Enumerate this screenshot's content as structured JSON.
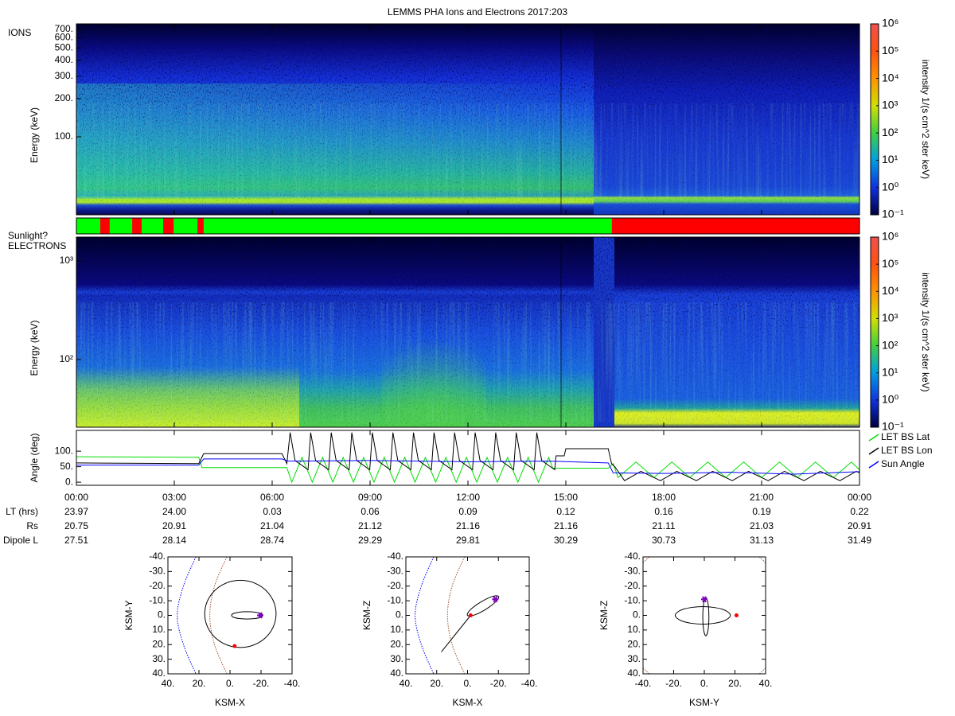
{
  "title": "LEMMS PHA Ions and Electrons  2017:203",
  "chart_data": [
    {
      "type": "spectrogram",
      "label": "IONS",
      "ylabel": "Energy (keV)",
      "ylog": true,
      "xlim": [
        0,
        24
      ],
      "ylim": [
        24.4,
        772
      ],
      "yticks": [
        {
          "value": 100,
          "label": "100."
        },
        {
          "value": 200,
          "label": "200."
        },
        {
          "value": 300,
          "label": "300."
        },
        {
          "value": 400,
          "label": "400."
        },
        {
          "value": 500,
          "label": "500."
        },
        {
          "value": 600,
          "label": "600."
        },
        {
          "value": 700,
          "label": "700."
        }
      ],
      "colorbar": {
        "label": "intensity 1/(s cm^2 ster keV)",
        "log": true,
        "clim": [
          0.1,
          1000000
        ],
        "ticks": [
          {
            "value": 0.1,
            "label": "10⁻¹"
          },
          {
            "value": 1,
            "label": "10⁰"
          },
          {
            "value": 10,
            "label": "10¹"
          },
          {
            "value": 100,
            "label": "10²"
          },
          {
            "value": 1000,
            "label": "10³"
          },
          {
            "value": 10000,
            "label": "10⁴"
          },
          {
            "value": 100000,
            "label": "10⁵"
          },
          {
            "value": 1000000,
            "label": "10⁶"
          }
        ]
      }
    },
    {
      "type": "timeline",
      "label": "Sunlight?",
      "xlim": [
        0,
        24
      ],
      "color": "#00ff00",
      "interval_color": "#ff0000",
      "intervals": [
        [
          0.73,
          1.02
        ],
        [
          1.71,
          2.0
        ],
        [
          2.66,
          2.98
        ],
        [
          3.71,
          3.9
        ],
        [
          16.41,
          24
        ]
      ]
    },
    {
      "type": "spectrogram",
      "label": "ELECTRONS",
      "ylabel": "Energy (keV)",
      "ylog": true,
      "xlim": [
        0,
        24
      ],
      "ylim": [
        20.6,
        1746
      ],
      "yticks": [
        {
          "value": 100,
          "label": "10²"
        },
        {
          "value": 1000,
          "label": "10³"
        }
      ],
      "colorbar": {
        "label": "intensity 1/(s cm^2 ster keV)",
        "log": true,
        "clim": [
          0.1,
          1000000
        ],
        "ticks": [
          {
            "value": 0.1,
            "label": "10⁻¹"
          },
          {
            "value": 1,
            "label": "10⁰"
          },
          {
            "value": 10,
            "label": "10¹"
          },
          {
            "value": 100,
            "label": "10²"
          },
          {
            "value": 1000,
            "label": "10³"
          },
          {
            "value": 10000,
            "label": "10⁴"
          },
          {
            "value": 100000,
            "label": "10⁵"
          },
          {
            "value": 1000000,
            "label": "10⁶"
          }
        ]
      }
    },
    {
      "type": "line",
      "ylabel": "Angle (deg)",
      "xlim": [
        0,
        24
      ],
      "ylim": [
        -10,
        167
      ],
      "legend": "right",
      "yticks": [
        {
          "value": 0,
          "label": "0."
        },
        {
          "value": 50,
          "label": "50."
        },
        {
          "value": 100,
          "label": "100."
        }
      ],
      "xticks": [
        {
          "value": 0,
          "label": "00:00"
        },
        {
          "value": 3,
          "label": "03:00"
        },
        {
          "value": 6,
          "label": "06:00"
        },
        {
          "value": 9,
          "label": "09:00"
        },
        {
          "value": 12,
          "label": "12:00"
        },
        {
          "value": 15,
          "label": "15:00"
        },
        {
          "value": 18,
          "label": "18:00"
        },
        {
          "value": 21,
          "label": "21:00"
        },
        {
          "value": 24,
          "label": "00:00"
        }
      ],
      "series": [
        {
          "name": "LET BS Lat",
          "color": "#00dd00",
          "x": [
            0,
            3.75,
            3.85,
            6.45,
            6.6,
            6.915,
            7.23,
            7.545,
            7.86,
            8.175,
            8.49,
            8.805,
            9.12,
            9.435,
            9.75,
            10.065,
            10.38,
            10.695,
            11.01,
            11.325,
            11.64,
            11.955,
            12.27,
            12.585,
            12.9,
            13.215,
            13.53,
            13.845,
            14.16,
            14.475,
            14.6,
            16.3,
            16.45,
            16.6,
            17.15,
            17.7,
            18.25,
            18.8,
            19.35,
            19.9,
            20.45,
            21.0,
            21.55,
            22.1,
            22.65,
            23.2,
            23.75,
            24
          ],
          "values": [
            82,
            80,
            47,
            47,
            0,
            80,
            0,
            80,
            0,
            80,
            0,
            80,
            0,
            80,
            0,
            80,
            0,
            80,
            0,
            80,
            0,
            80,
            0,
            80,
            0,
            80,
            0,
            80,
            0,
            80,
            45,
            45,
            60,
            15,
            65,
            15,
            65,
            15,
            65,
            15,
            65,
            15,
            65,
            15,
            65,
            15,
            65,
            40
          ]
        },
        {
          "name": "LET BS Lon",
          "color": "#000000",
          "x": [
            0,
            3.75,
            3.9,
            6.3,
            6.45,
            6.55,
            6.7,
            7.1,
            7.18,
            7.33,
            7.73,
            7.81,
            7.96,
            8.36,
            8.44,
            8.59,
            8.99,
            9.07,
            9.22,
            9.62,
            9.7,
            9.85,
            10.25,
            10.33,
            10.48,
            10.88,
            10.96,
            11.11,
            11.51,
            11.59,
            11.74,
            12.14,
            12.22,
            12.37,
            12.77,
            12.85,
            13.0,
            13.4,
            13.48,
            13.63,
            14.03,
            14.11,
            14.26,
            14.66,
            14.7,
            14.95,
            15.0,
            16.3,
            16.4,
            16.5,
            16.8,
            17.3,
            17.9,
            18.4,
            19.0,
            19.5,
            20.1,
            20.6,
            21.2,
            21.7,
            22.3,
            22.8,
            23.4,
            23.9,
            24
          ],
          "values": [
            62,
            60,
            92,
            92,
            60,
            160,
            70,
            40,
            160,
            70,
            40,
            160,
            70,
            40,
            160,
            70,
            40,
            160,
            70,
            40,
            160,
            70,
            40,
            160,
            70,
            40,
            160,
            70,
            40,
            160,
            70,
            40,
            160,
            70,
            40,
            160,
            70,
            40,
            160,
            70,
            40,
            160,
            70,
            40,
            85,
            85,
            108,
            108,
            60,
            50,
            5,
            35,
            5,
            35,
            5,
            35,
            5,
            35,
            5,
            35,
            5,
            35,
            5,
            35,
            30
          ]
        },
        {
          "name": "Sun Angle",
          "color": "#0000ff",
          "x": [
            0,
            3.75,
            3.9,
            6.3,
            6.5,
            9,
            12,
            14.5,
            16.3,
            16.45,
            18,
            20,
            22,
            24
          ],
          "values": [
            55,
            55,
            75,
            75,
            68,
            70,
            66,
            68,
            62,
            30,
            28,
            32,
            26,
            34
          ]
        }
      ]
    },
    {
      "type": "orbit",
      "xlabel": "KSM-X",
      "ylabel": "KSM-Y",
      "xlim": [
        40,
        -40
      ],
      "ylim": [
        40,
        -40
      ],
      "xticks": [
        {
          "value": 40,
          "label": "40."
        },
        {
          "value": 20,
          "label": "20."
        },
        {
          "value": 0,
          "label": "0."
        },
        {
          "value": -20,
          "label": "-20."
        },
        {
          "value": -40,
          "label": "-40."
        }
      ],
      "yticks": [
        {
          "value": -40,
          "label": "-40."
        },
        {
          "value": -30,
          "label": "-30."
        },
        {
          "value": -20,
          "label": "-20."
        },
        {
          "value": -10,
          "label": "-10."
        },
        {
          "value": 0,
          "label": "0."
        },
        {
          "value": 10,
          "label": "10."
        },
        {
          "value": 20,
          "label": "20."
        },
        {
          "value": 30,
          "label": "30."
        },
        {
          "value": 40,
          "label": "40."
        }
      ],
      "traces": [
        {
          "color": "#0000ff",
          "dash": true,
          "x": [
            22,
            30,
            34,
            30,
            22
          ],
          "y": [
            -40,
            -20,
            0,
            20,
            40
          ]
        },
        {
          "color": "#a0522d",
          "dash": true,
          "x": [
            2,
            10,
            13,
            10,
            2
          ],
          "y": [
            -40,
            -20,
            0,
            20,
            40
          ]
        },
        {
          "color": "#000000",
          "closed": true,
          "x": [
            16.3,
            13.2,
            4.8,
            -6.7,
            -18.2,
            -26.6,
            -29.7,
            -26.6,
            -18.2,
            -6.7,
            4.8,
            13.2
          ],
          "y": [
            -1,
            10.5,
            18.9,
            22,
            18.9,
            10.5,
            -1,
            -12.5,
            -20.9,
            -24,
            -20.9,
            -12.5
          ]
        },
        {
          "color": "#000000",
          "closed": true,
          "x": [
            -1,
            -2.3,
            -6,
            -11,
            -16,
            -19.7,
            -21,
            -19.7,
            -16,
            -11,
            -6,
            -2.3
          ],
          "y": [
            0,
            1.3,
            2.2,
            2.5,
            2.2,
            1.3,
            0,
            -1.3,
            -2.2,
            -2.5,
            -2.2,
            -1.3
          ]
        }
      ],
      "points": [
        {
          "marker": "dot",
          "color": "#ff0000",
          "x": -3,
          "y": 21
        },
        {
          "marker": "star",
          "color": "#8000c0",
          "x": -19.5,
          "y": 0
        }
      ]
    },
    {
      "type": "orbit",
      "xlabel": "KSM-X",
      "ylabel": "KSM-Z",
      "xlim": [
        40,
        -40
      ],
      "ylim": [
        40,
        -40
      ],
      "xticks": [
        {
          "value": 40,
          "label": "40."
        },
        {
          "value": 20,
          "label": "20."
        },
        {
          "value": 0,
          "label": "0."
        },
        {
          "value": -20,
          "label": "-20."
        },
        {
          "value": -40,
          "label": "-40."
        }
      ],
      "yticks": [
        {
          "value": -40,
          "label": "-40."
        },
        {
          "value": -30,
          "label": "-30."
        },
        {
          "value": -20,
          "label": "-20."
        },
        {
          "value": -10,
          "label": "-10."
        },
        {
          "value": 0,
          "label": "0."
        },
        {
          "value": 10,
          "label": "10."
        },
        {
          "value": 20,
          "label": "20."
        },
        {
          "value": 30,
          "label": "30."
        },
        {
          "value": 40,
          "label": "40."
        }
      ],
      "traces": [
        {
          "color": "#0000ff",
          "dash": true,
          "x": [
            22,
            30,
            34,
            30,
            22
          ],
          "y": [
            -40,
            -20,
            0,
            20,
            40
          ]
        },
        {
          "color": "#a0522d",
          "dash": true,
          "x": [
            2,
            10,
            13,
            10,
            2
          ],
          "y": [
            -40,
            -20,
            0,
            20,
            40
          ]
        },
        {
          "color": "#000000",
          "closed": true,
          "x": [
            -20.1,
            -15.95,
            -8.4,
            -1.7,
            0.1,
            -4.05,
            -11.6,
            -18.3
          ],
          "y": [
            -13.0,
            -12.9,
            -9.0,
            -3.7,
            0.0,
            -0.1,
            -4.0,
            -9.35
          ]
        },
        {
          "color": "#000000",
          "x": [
            17,
            -2
          ],
          "y": [
            25,
            0
          ]
        }
      ],
      "points": [
        {
          "marker": "dot",
          "color": "#ff0000",
          "x": -2,
          "y": 0
        },
        {
          "marker": "star",
          "color": "#8000c0",
          "x": -18,
          "y": -11
        }
      ]
    },
    {
      "type": "orbit",
      "xlabel": "KSM-Y",
      "ylabel": "KSM-Z",
      "xlim": [
        -40,
        40
      ],
      "ylim": [
        40,
        -40
      ],
      "xticks": [
        {
          "value": -40,
          "label": "-40."
        },
        {
          "value": -20,
          "label": "-20."
        },
        {
          "value": 0,
          "label": "0."
        },
        {
          "value": 20,
          "label": "20."
        },
        {
          "value": 40,
          "label": "40."
        }
      ],
      "yticks": [
        {
          "value": -40,
          "label": "-40."
        },
        {
          "value": -30,
          "label": "-30."
        },
        {
          "value": -20,
          "label": "-20."
        },
        {
          "value": -10,
          "label": "-10."
        },
        {
          "value": 0,
          "label": "0."
        },
        {
          "value": 10,
          "label": "10."
        },
        {
          "value": 20,
          "label": "20."
        },
        {
          "value": 30,
          "label": "30."
        },
        {
          "value": 40,
          "label": "40."
        }
      ],
      "traces": [
        {
          "color": "#a0522d",
          "dash": true,
          "x": [
            -40,
            -36
          ],
          "y": [
            -36,
            -40
          ]
        },
        {
          "color": "#a0522d",
          "dash": true,
          "x": [
            36,
            40
          ],
          "y": [
            -40,
            -36
          ]
        },
        {
          "color": "#a0522d",
          "dash": true,
          "x": [
            -40,
            -36
          ],
          "y": [
            36,
            40
          ]
        },
        {
          "color": "#a0522d",
          "dash": true,
          "x": [
            36,
            40
          ],
          "y": [
            40,
            36
          ]
        },
        {
          "color": "#000000",
          "closed": true,
          "x": [
            17,
            11.7,
            -1,
            -13.7,
            -19,
            -13.7,
            -1,
            11.7
          ],
          "y": [
            0,
            4.2,
            6,
            4.2,
            0,
            -4.2,
            -6,
            -4.2
          ]
        },
        {
          "color": "#000000",
          "closed": true,
          "x": [
            1,
            2.4,
            3,
            2.4,
            1,
            -0.4,
            -1,
            -0.4
          ],
          "y": [
            -12,
            -8.2,
            1,
            10.2,
            14,
            10.2,
            1,
            -8.2
          ]
        }
      ],
      "points": [
        {
          "marker": "dot",
          "color": "#ff0000",
          "x": 21,
          "y": 0
        },
        {
          "marker": "star",
          "color": "#8000c0",
          "x": 0,
          "y": -11
        }
      ]
    }
  ],
  "ephemeris": {
    "rows": [
      {
        "label": "LT (hrs)",
        "values": [
          "23.97",
          "24.00",
          "0.03",
          "0.06",
          "0.09",
          "0.12",
          "0.16",
          "0.19",
          "0.22"
        ]
      },
      {
        "label": "Rs",
        "values": [
          "20.75",
          "20.91",
          "21.04",
          "21.12",
          "21.16",
          "21.16",
          "21.11",
          "21.03",
          "20.91"
        ]
      },
      {
        "label": "Dipole L",
        "values": [
          "27.51",
          "28.14",
          "28.74",
          "29.29",
          "29.81",
          "30.29",
          "30.73",
          "31.13",
          "31.49"
        ]
      }
    ]
  }
}
